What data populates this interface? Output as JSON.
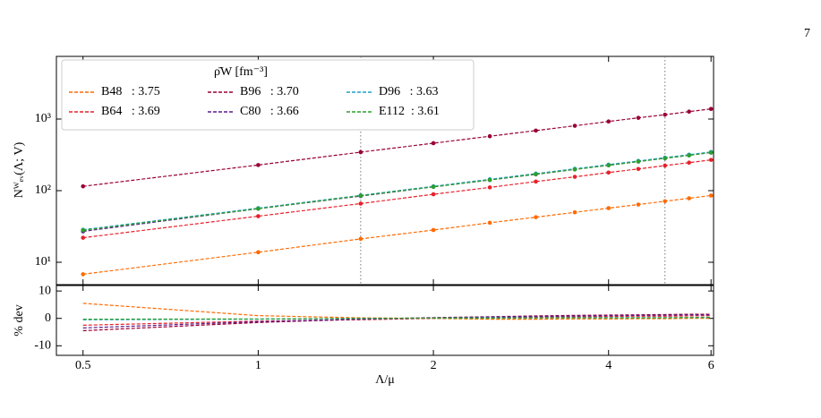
{
  "page_number": "7",
  "chart_data": [
    {
      "type": "line",
      "ylabel": "Nᵂₑᵥ(Λ; V)",
      "log_x": true,
      "log_y": true,
      "xlim": [
        0.45,
        6.06
      ],
      "ylim": [
        4.87,
        7500
      ],
      "yticks": [
        {
          "value": 10,
          "label": "10¹"
        },
        {
          "value": 100,
          "label": "10²"
        },
        {
          "value": 1000,
          "label": "10³"
        }
      ],
      "vlines": [
        1.5,
        5
      ],
      "legend": "upper left",
      "legend_title": "ρ̄W [fm⁻³]",
      "x": [
        0.5,
        1,
        1.5,
        2,
        2.5,
        3,
        3.5,
        4,
        4.5,
        5,
        5.5,
        6
      ],
      "series": [
        {
          "name": "B48   : 3.75",
          "color": "#ff6a00",
          "values": [
            6.8,
            13.8,
            21.2,
            28.2,
            35.6,
            42.6,
            49.8,
            57.0,
            64.0,
            71.2,
            78.2,
            85.5
          ]
        },
        {
          "name": "B64   : 3.69",
          "color": "#e8202a",
          "values": [
            22,
            44,
            66,
            89,
            111,
            134,
            156,
            179,
            201,
            224,
            246,
            269
          ]
        },
        {
          "name": "B96   : 3.70",
          "color": "#990033",
          "values": [
            115,
            228,
            345,
            460,
            575,
            690,
            805,
            925,
            1040,
            1150,
            1270,
            1385
          ]
        },
        {
          "name": "C80   : 3.66",
          "color": "#5b1a8c",
          "values": [
            27,
            56,
            84,
            113,
            141,
            169,
            198,
            226,
            255,
            283,
            312,
            340
          ]
        },
        {
          "name": "D96   : 3.63",
          "color": "#1f9ec8",
          "values": [
            28.5,
            57,
            86,
            115,
            144,
            173,
            202,
            231,
            260,
            289,
            318,
            347
          ]
        },
        {
          "name": "E112  : 3.61",
          "color": "#2ca02c",
          "values": [
            28,
            56,
            85,
            113,
            141,
            170,
            198,
            226,
            255,
            283,
            311,
            340
          ]
        }
      ]
    },
    {
      "type": "line",
      "ylabel": "% dev",
      "xlabel": "Λ/μ",
      "log_x": true,
      "log_y": false,
      "xlim": [
        0.45,
        6.06
      ],
      "ylim": [
        -13.5,
        12
      ],
      "xticks": [
        0.5,
        1,
        2,
        4,
        6
      ],
      "yticks": [
        -10,
        0,
        10
      ],
      "x": [
        0.5,
        1,
        1.5,
        2,
        2.5,
        3,
        3.5,
        4,
        4.5,
        5,
        5.5,
        6
      ],
      "series": [
        {
          "color": "#ff6a00",
          "values": [
            5.5,
            1,
            0.2,
            0,
            -0.3,
            -0.3,
            -0.2,
            -0.2,
            -0.1,
            -0.1,
            0,
            0
          ]
        },
        {
          "color": "#e8202a",
          "values": [
            -2.5,
            -1,
            -0.5,
            0,
            0.3,
            0.5,
            0.6,
            0.7,
            0.8,
            0.8,
            0.9,
            1
          ]
        },
        {
          "color": "#990033",
          "values": [
            -4.5,
            -1.5,
            -0.3,
            0.3,
            0.6,
            0.9,
            1.1,
            1.2,
            1.3,
            1.4,
            1.5,
            1.5
          ]
        },
        {
          "color": "#5b1a8c",
          "values": [
            -3.5,
            -1.2,
            -0.3,
            0.2,
            0.5,
            0.7,
            0.9,
            1,
            1.1,
            1.2,
            1.3,
            1.3
          ]
        },
        {
          "color": "#1f9ec8",
          "values": [
            -0.5,
            -0.3,
            0,
            0.1,
            0.2,
            0.2,
            0.3,
            0.3,
            0.3,
            0.3,
            0.3,
            0.4
          ]
        },
        {
          "color": "#2ca02c",
          "values": [
            -0.3,
            -0.2,
            0,
            0.1,
            0.1,
            0.2,
            0.2,
            0.2,
            0.2,
            0.2,
            0.3,
            0.3
          ]
        }
      ]
    }
  ]
}
